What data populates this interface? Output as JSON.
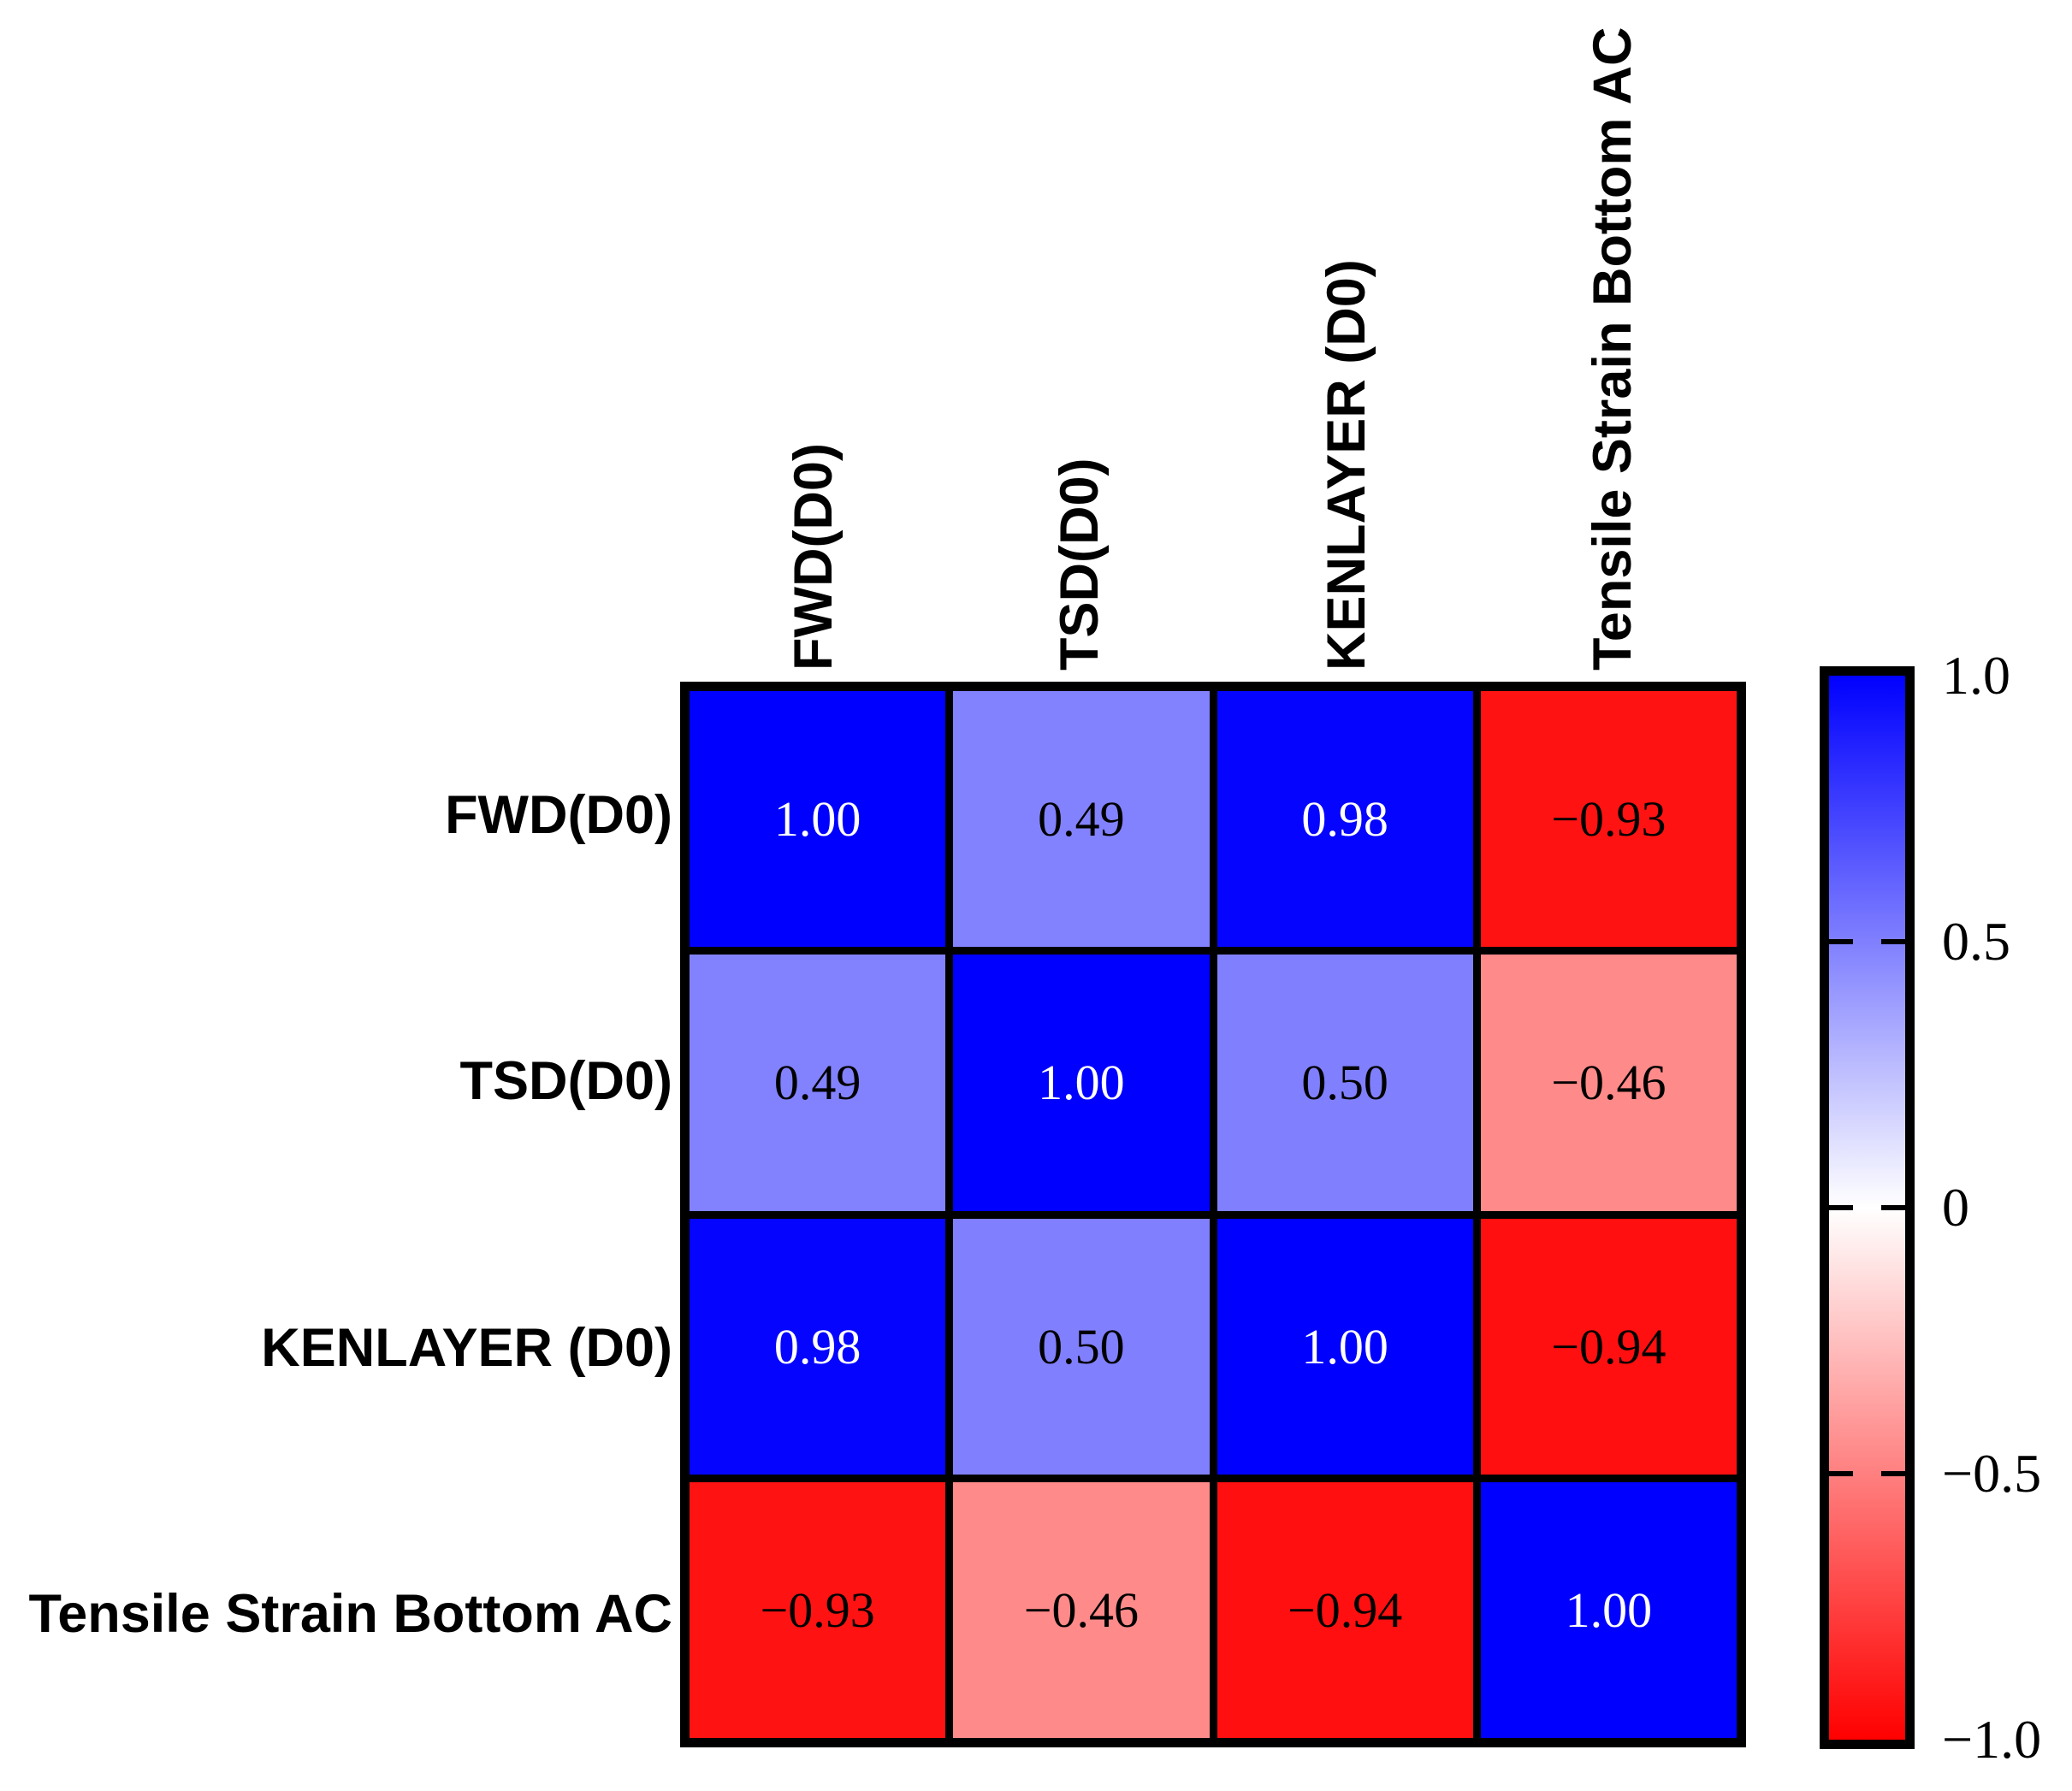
{
  "figure": {
    "description": "Correlation matrix heatmap of deflection measurement methods versus tensile strain at bottom of AC layer"
  },
  "chart_data": {
    "type": "heatmap",
    "title": "",
    "xlabel": "",
    "ylabel": "",
    "variables": [
      "FWD(D0)",
      "TSD(D0)",
      "KENLAYER (D0)",
      "Tensile Strain Bottom AC"
    ],
    "matrix": [
      [
        1.0,
        0.49,
        0.98,
        -0.93
      ],
      [
        0.49,
        1.0,
        0.5,
        -0.46
      ],
      [
        0.98,
        0.5,
        1.0,
        -0.94
      ],
      [
        -0.93,
        -0.46,
        -0.94,
        1.0
      ]
    ],
    "cell_labels": [
      [
        "1.00",
        "0.49",
        "0.98",
        "−0.93"
      ],
      [
        "0.49",
        "1.00",
        "0.50",
        "−0.46"
      ],
      [
        "0.98",
        "0.50",
        "1.00",
        "−0.94"
      ],
      [
        "−0.93",
        "−0.46",
        "−0.94",
        "1.00"
      ]
    ],
    "value_range": [
      -1,
      1
    ],
    "grid": "black borders between cells",
    "colormap": {
      "type": "blue-white-red",
      "max_color": "#0000ff",
      "mid_color": "#ffffff",
      "min_color": "#ff0000",
      "strong_value_text_color": "#ffffff",
      "default_text_color": "#000000",
      "white_text_threshold": 0.9
    },
    "colorbar": {
      "position": "right",
      "tick_labels": [
        "1.0",
        "0.5",
        "0",
        "−0.5",
        "−1.0"
      ],
      "tick_values": [
        1.0,
        0.5,
        0,
        -0.5,
        -1.0
      ]
    }
  }
}
